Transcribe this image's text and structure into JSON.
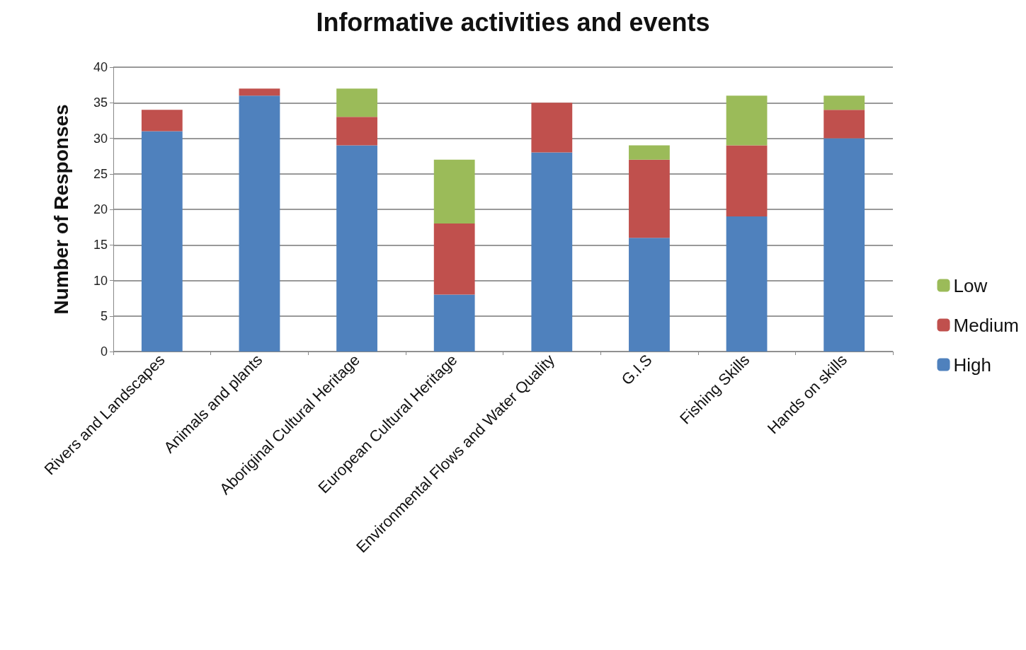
{
  "chart_data": {
    "type": "bar",
    "title": "Informative activities and events",
    "ylabel": "Number of Responses",
    "categories": [
      "Rivers and Landscapes",
      "Animals and plants",
      "Aboriginal Cultural Heritage",
      "European Cultural Heritage",
      "Environmental Flows and Water Quality",
      "G.I.S",
      "Fishing Skills",
      "Hands on skills"
    ],
    "series": [
      {
        "name": "High",
        "color": "#4f81bd",
        "values": [
          31,
          36,
          29,
          8,
          28,
          16,
          19,
          30
        ]
      },
      {
        "name": "Medium",
        "color": "#c0504d",
        "values": [
          3,
          1,
          4,
          10,
          7,
          11,
          10,
          4
        ]
      },
      {
        "name": "Low",
        "color": "#9bbb59",
        "values": [
          0,
          0,
          4,
          9,
          0,
          2,
          7,
          2
        ]
      }
    ],
    "stacked": true,
    "ylim": [
      0,
      40
    ],
    "yticks": [
      0,
      5,
      10,
      15,
      20,
      25,
      30,
      35,
      40
    ],
    "grid": "y",
    "legend": "right"
  }
}
